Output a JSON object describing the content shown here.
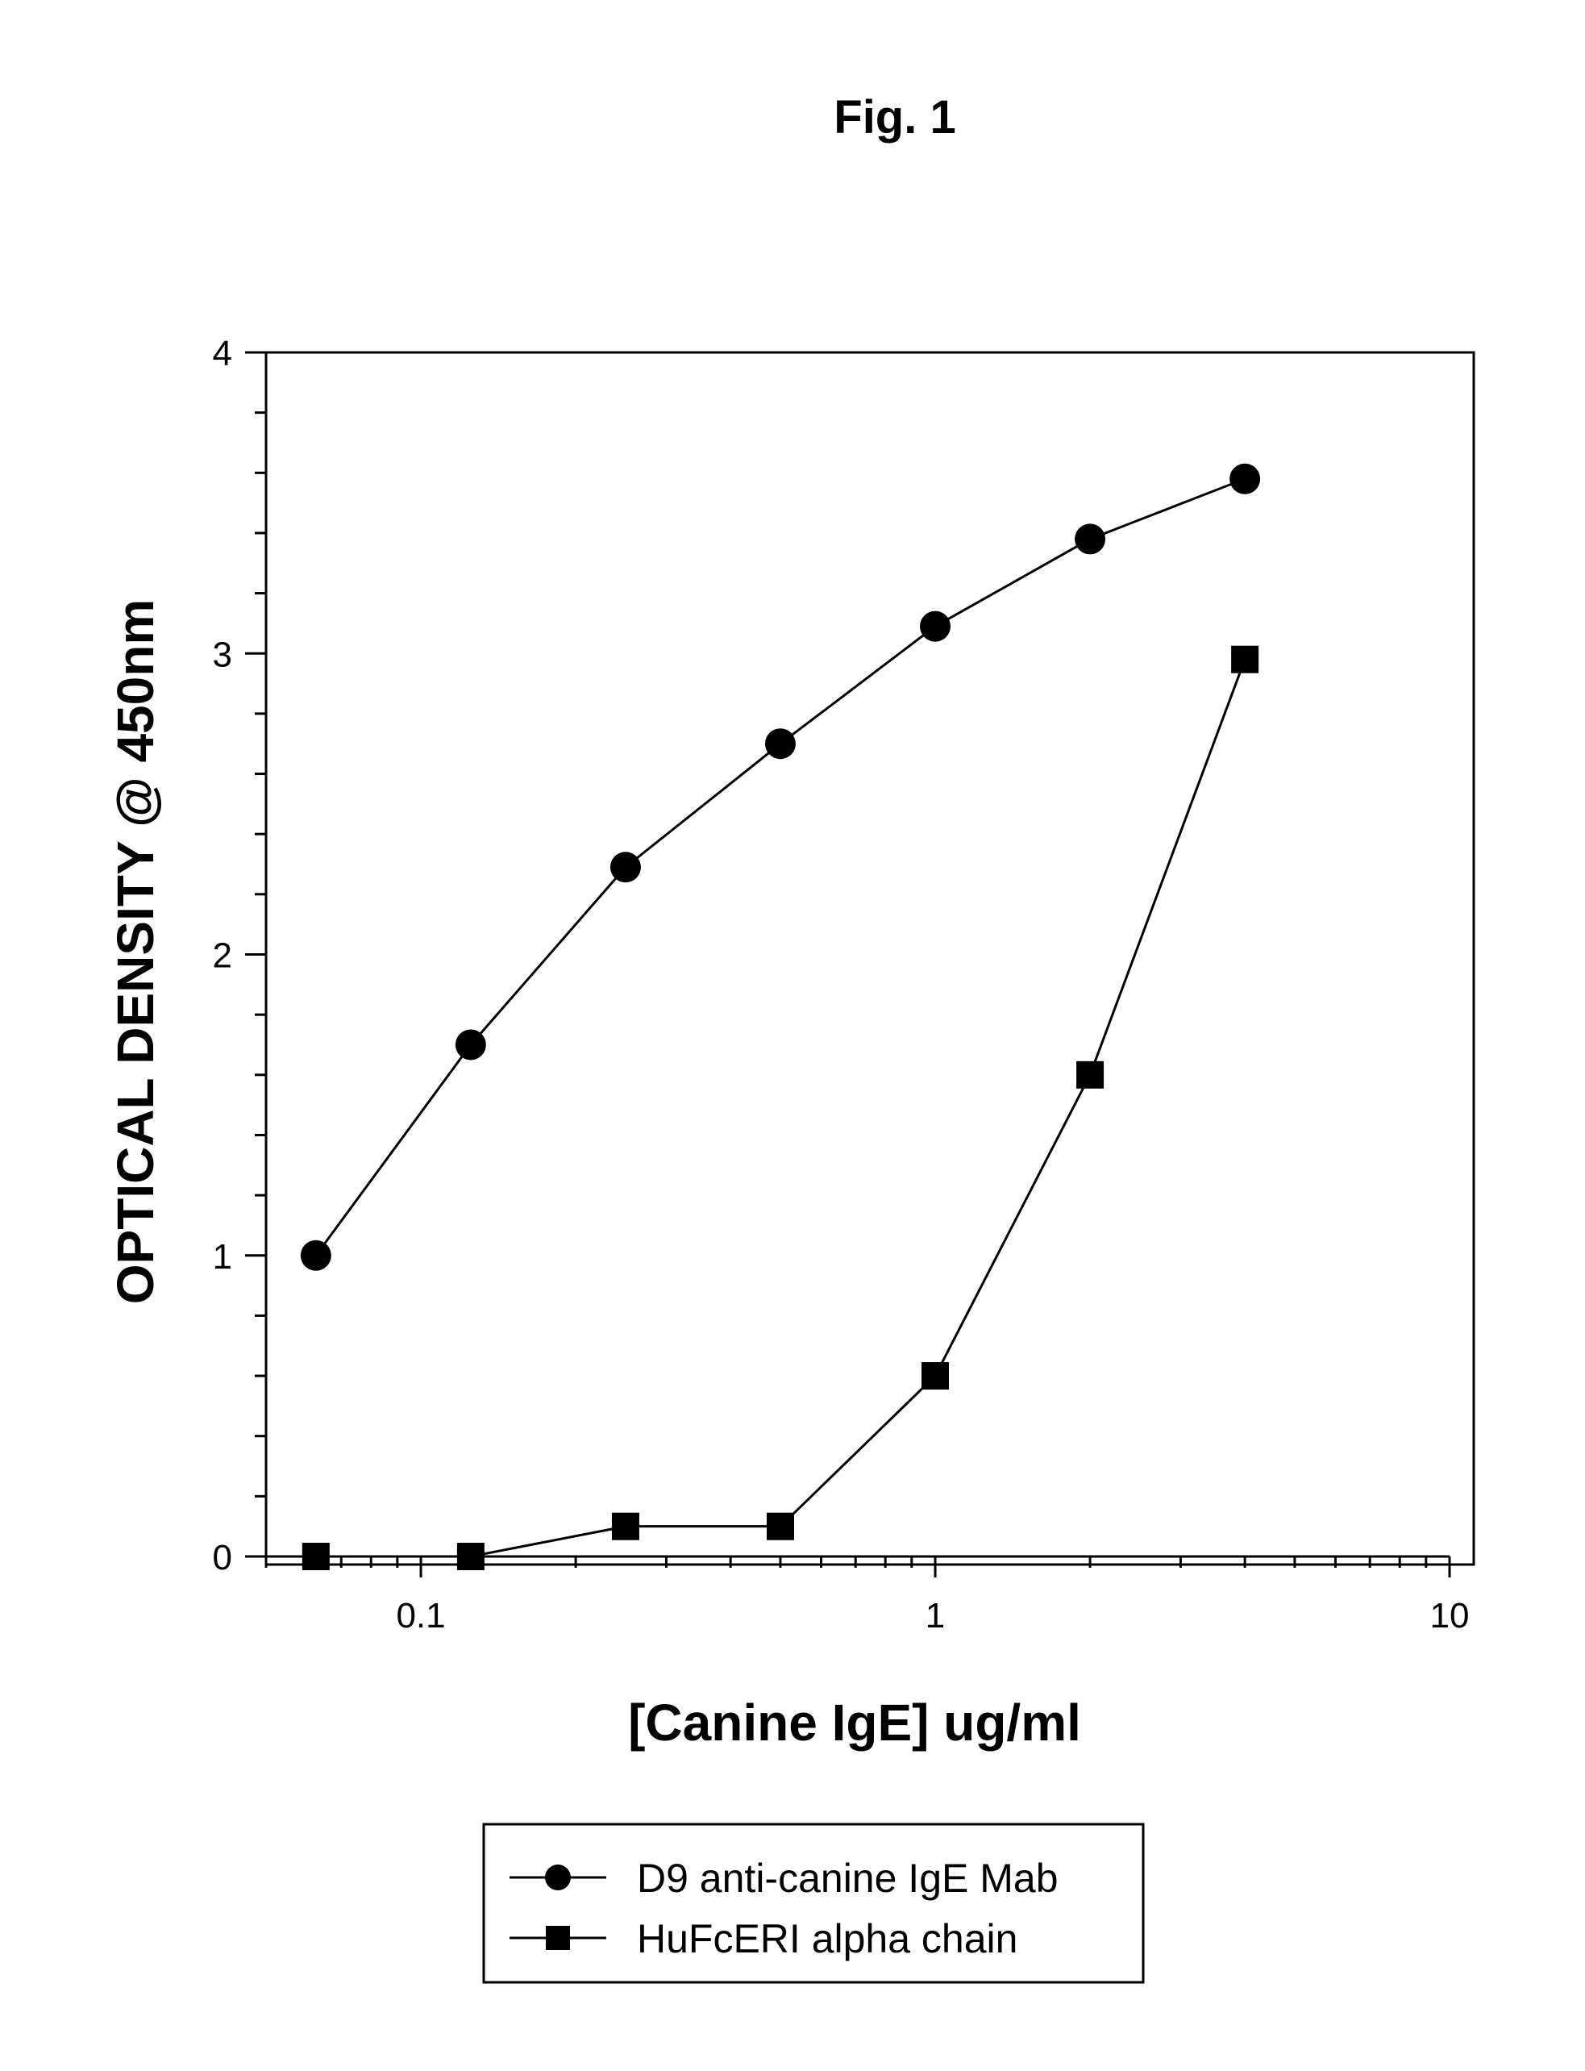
{
  "figure": {
    "title": "Fig. 1"
  },
  "chart_data": {
    "type": "line",
    "title": "",
    "xlabel": "[Canine IgE]  ug/ml",
    "ylabel": "OPTICAL DENSITY @ 450nm",
    "xscale": "log",
    "xlim": [
      0.05,
      10
    ],
    "ylim": [
      0,
      4
    ],
    "x_ticks": [
      "0.1",
      "1",
      "10"
    ],
    "y_ticks": [
      "0",
      "1",
      "2",
      "3",
      "4"
    ],
    "grid": false,
    "legend_position": "bottom-center",
    "series": [
      {
        "name": "D9 anti-canine IgE Mab",
        "marker": "circle",
        "color": "#000000",
        "x": [
          0.0625,
          0.125,
          0.25,
          0.5,
          1,
          2,
          4
        ],
        "y": [
          1.0,
          1.7,
          2.29,
          2.7,
          3.09,
          3.38,
          3.58
        ]
      },
      {
        "name": "HuFcERI alpha chain",
        "marker": "square",
        "color": "#000000",
        "x": [
          0.0625,
          0.125,
          0.25,
          0.5,
          1,
          2,
          4
        ],
        "y": [
          0.0,
          0.0,
          0.1,
          0.1,
          0.6,
          1.6,
          2.98
        ]
      }
    ]
  }
}
